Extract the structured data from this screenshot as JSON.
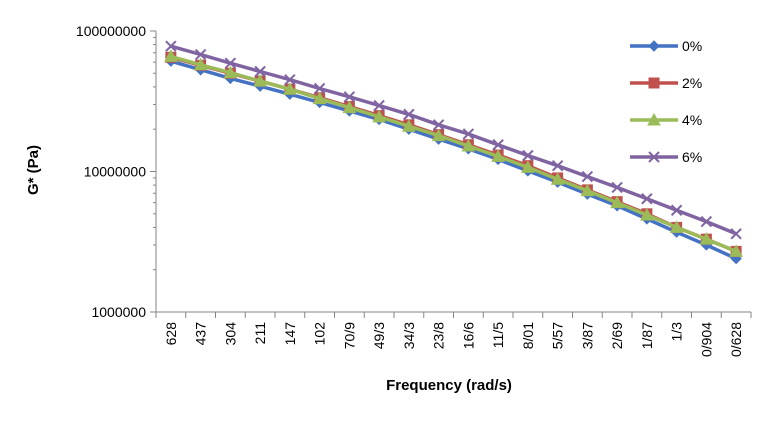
{
  "chart_data": {
    "type": "line",
    "title": "",
    "xlabel": "Frequency (rad/s)",
    "ylabel": "G* (Pa)",
    "yscale": "log",
    "ylim": [
      1000000,
      100000000
    ],
    "yticks": [
      "1000000",
      "10000000",
      "100000000"
    ],
    "grid": false,
    "legend_position": "right",
    "categories": [
      "628",
      "437",
      "304",
      "211",
      "147",
      "102",
      "70/9",
      "49/3",
      "34/3",
      "23/8",
      "16/6",
      "11/5",
      "8/01",
      "5/57",
      "3/87",
      "2/69",
      "1/87",
      "1/3",
      "0/904",
      "0/628"
    ],
    "series": [
      {
        "name": "0%",
        "color": "#4472C4",
        "marker": "diamond",
        "values": [
          61000000,
          53000000,
          46000000,
          40500000,
          35500000,
          31000000,
          27000000,
          23500000,
          20000000,
          17000000,
          14500000,
          12200000,
          10100000,
          8400000,
          6900000,
          5700000,
          4600000,
          3700000,
          3000000,
          2400000
        ]
      },
      {
        "name": "2%",
        "color": "#C0504D",
        "marker": "square",
        "values": [
          65000000,
          57000000,
          50000000,
          44000000,
          38500000,
          33500000,
          29000000,
          25000000,
          21500000,
          18300000,
          15500000,
          13100000,
          11000000,
          9000000,
          7400000,
          6100000,
          5000000,
          4000000,
          3300000,
          2700000
        ]
      },
      {
        "name": "4%",
        "color": "#9BBB59",
        "marker": "triangle",
        "values": [
          66000000,
          57500000,
          50500000,
          44000000,
          38500000,
          33000000,
          28500000,
          24500000,
          21000000,
          18000000,
          15200000,
          12800000,
          10700000,
          8800000,
          7300000,
          6000000,
          4900000,
          4000000,
          3300000,
          2700000
        ]
      },
      {
        "name": "6%",
        "color": "#8064A2",
        "marker": "x",
        "values": [
          78000000,
          68000000,
          59000000,
          51500000,
          45000000,
          39000000,
          34000000,
          29500000,
          25500000,
          21500000,
          18500000,
          15500000,
          13000000,
          11000000,
          9200000,
          7700000,
          6400000,
          5300000,
          4400000,
          3600000
        ]
      }
    ]
  }
}
